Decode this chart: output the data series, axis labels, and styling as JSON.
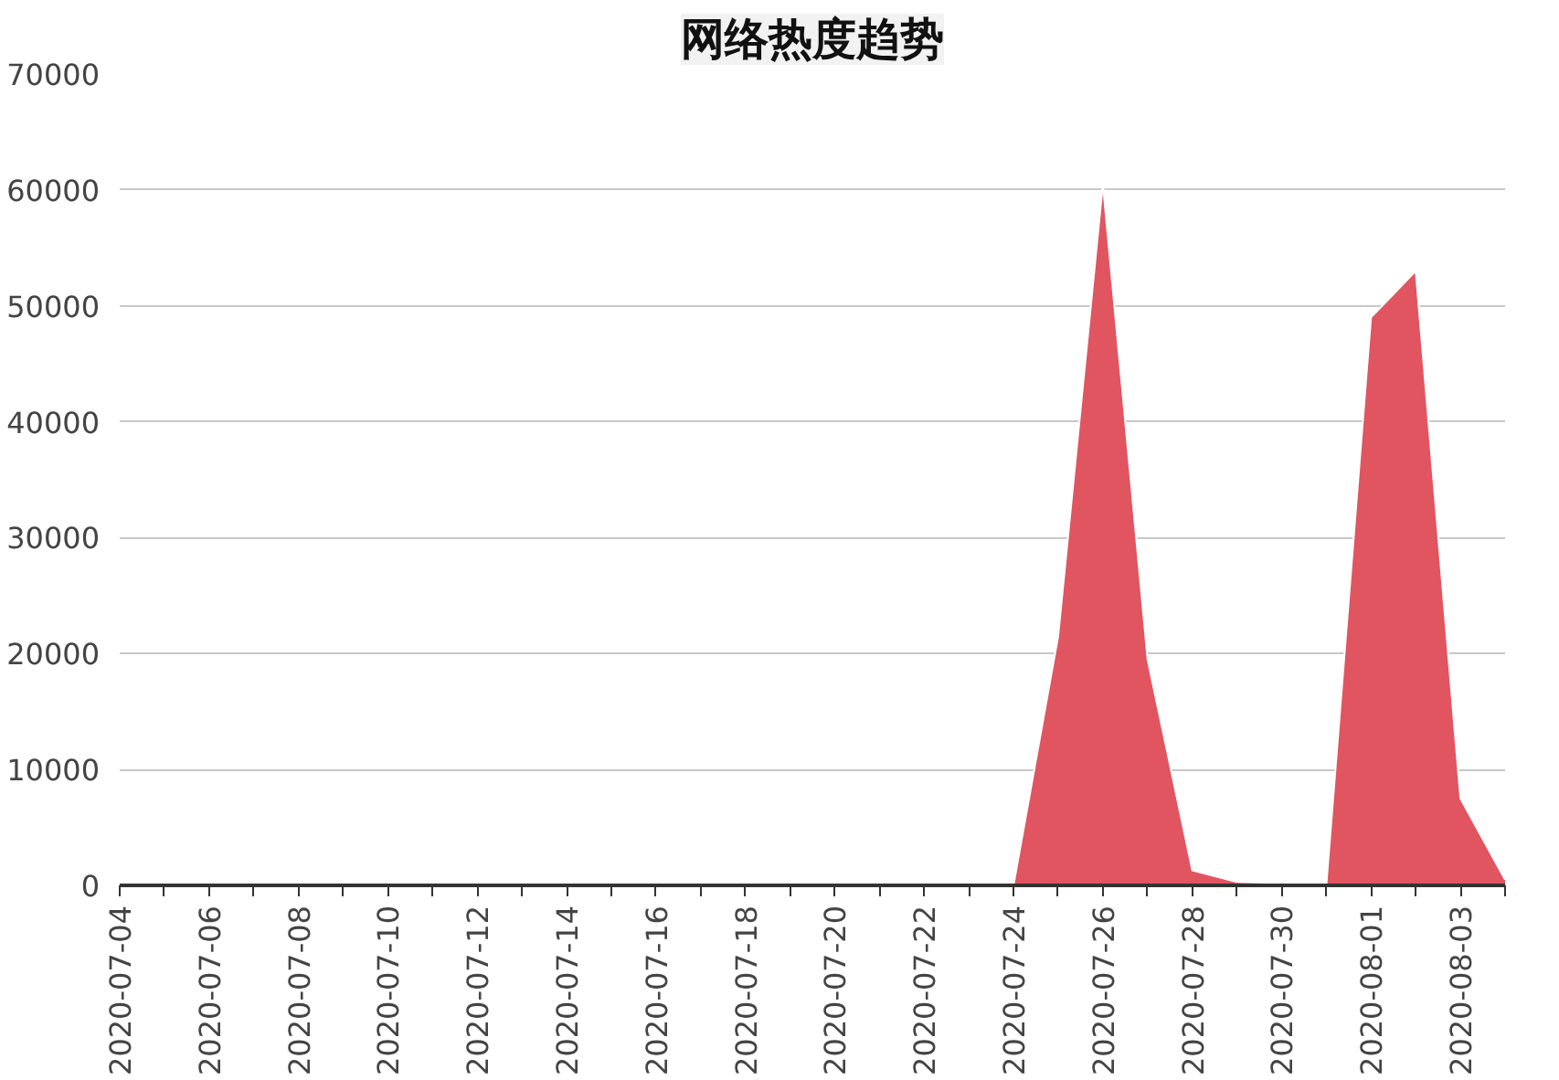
{
  "chart_data": {
    "type": "area",
    "title": "网络热度趋势",
    "x": [
      "2020-07-04",
      "2020-07-05",
      "2020-07-06",
      "2020-07-07",
      "2020-07-08",
      "2020-07-09",
      "2020-07-10",
      "2020-07-11",
      "2020-07-12",
      "2020-07-13",
      "2020-07-14",
      "2020-07-15",
      "2020-07-16",
      "2020-07-17",
      "2020-07-18",
      "2020-07-19",
      "2020-07-20",
      "2020-07-21",
      "2020-07-22",
      "2020-07-23",
      "2020-07-24",
      "2020-07-25",
      "2020-07-26",
      "2020-07-27",
      "2020-07-28",
      "2020-07-29",
      "2020-07-30",
      "2020-07-31",
      "2020-08-01",
      "2020-08-02",
      "2020-08-03",
      "2020-08-04"
    ],
    "series": [
      {
        "color": "#e0555f",
        "values": [
          0,
          0,
          0,
          0,
          0,
          0,
          0,
          0,
          0,
          0,
          0,
          0,
          0,
          0,
          0,
          0,
          0,
          0,
          0,
          0,
          0,
          21500,
          60500,
          19500,
          1300,
          300,
          200,
          0,
          49000,
          53000,
          7500,
          500
        ]
      }
    ],
    "ylim": [
      0,
      70000
    ],
    "yticks": [
      0,
      10000,
      20000,
      30000,
      40000,
      50000,
      60000,
      70000
    ],
    "xlim": [
      "2020-07-04",
      "2020-08-04"
    ],
    "xticks": [
      {
        "value": "2020-07-04",
        "label": "2020-07-04"
      },
      {
        "value": "2020-07-05",
        "label": null
      },
      {
        "value": "2020-07-06",
        "label": "2020-07-06"
      },
      {
        "value": "2020-07-07",
        "label": null
      },
      {
        "value": "2020-07-08",
        "label": "2020-07-08"
      },
      {
        "value": "2020-07-09",
        "label": null
      },
      {
        "value": "2020-07-10",
        "label": "2020-07-10"
      },
      {
        "value": "2020-07-11",
        "label": null
      },
      {
        "value": "2020-07-12",
        "label": "2020-07-12"
      },
      {
        "value": "2020-07-13",
        "label": null
      },
      {
        "value": "2020-07-14",
        "label": "2020-07-14"
      },
      {
        "value": "2020-07-15",
        "label": null
      },
      {
        "value": "2020-07-16",
        "label": "2020-07-16"
      },
      {
        "value": "2020-07-17",
        "label": null
      },
      {
        "value": "2020-07-18",
        "label": "2020-07-18"
      },
      {
        "value": "2020-07-19",
        "label": null
      },
      {
        "value": "2020-07-20",
        "label": "2020-07-20"
      },
      {
        "value": "2020-07-21",
        "label": null
      },
      {
        "value": "2020-07-22",
        "label": "2020-07-22"
      },
      {
        "value": "2020-07-23",
        "label": null
      },
      {
        "value": "2020-07-24",
        "label": "2020-07-24"
      },
      {
        "value": "2020-07-25",
        "label": null
      },
      {
        "value": "2020-07-26",
        "label": "2020-07-26"
      },
      {
        "value": "2020-07-27",
        "label": null
      },
      {
        "value": "2020-07-28",
        "label": "2020-07-28"
      },
      {
        "value": "2020-07-29",
        "label": null
      },
      {
        "value": "2020-07-30",
        "label": "2020-07-30"
      },
      {
        "value": "2020-07-31",
        "label": null
      },
      {
        "value": "2020-08-01",
        "label": "2020-08-01"
      },
      {
        "value": "2020-08-02",
        "label": null
      },
      {
        "value": "2020-08-03",
        "label": "2020-08-03"
      },
      {
        "value": "2020-08-04",
        "label": null
      }
    ],
    "grid": "y"
  }
}
